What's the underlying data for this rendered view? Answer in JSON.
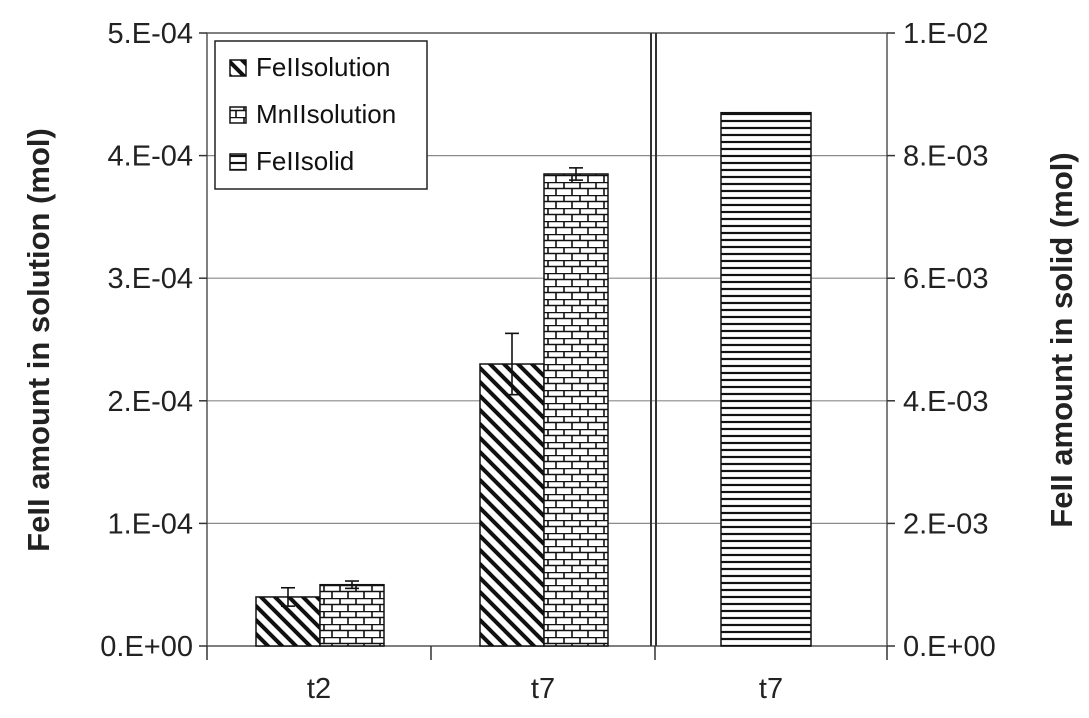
{
  "chart_data": {
    "type": "bar",
    "x_tick_labels": [
      "t2",
      "t7",
      "t7"
    ],
    "ylabel": "FeII amount in solution (mol)",
    "y2label": "FeII amount in solid (mol)",
    "ylim": [
      0,
      0.0005
    ],
    "y2lim": [
      0,
      0.01
    ],
    "y_ticks": [
      "0.E+00",
      "1.E-04",
      "2.E-04",
      "3.E-04",
      "4.E-04",
      "5.E-04"
    ],
    "y2_ticks": [
      "0.E+00",
      "2.E-03",
      "4.E-03",
      "6.E-03",
      "8.E-03",
      "1.E-02"
    ],
    "grid": true,
    "legend_position": "top-left",
    "series": [
      {
        "name": "FeIIsolution",
        "axis": "left",
        "pattern": "diagonal-hatch",
        "points": [
          {
            "x": "t2",
            "value": 4e-05,
            "error": 7.5e-06
          },
          {
            "x": "t7",
            "value": 0.00023,
            "error": 2.5e-05
          }
        ]
      },
      {
        "name": "MnIIsolution",
        "axis": "left",
        "pattern": "brick",
        "points": [
          {
            "x": "t2",
            "value": 5e-05,
            "error": 3e-06
          },
          {
            "x": "t7",
            "value": 0.000385,
            "error": 5e-06
          }
        ]
      },
      {
        "name": "FeIIsolid",
        "axis": "right",
        "pattern": "horizontal-lines",
        "points": [
          {
            "x": "t7",
            "value": 0.0087,
            "error": null
          }
        ]
      }
    ]
  }
}
